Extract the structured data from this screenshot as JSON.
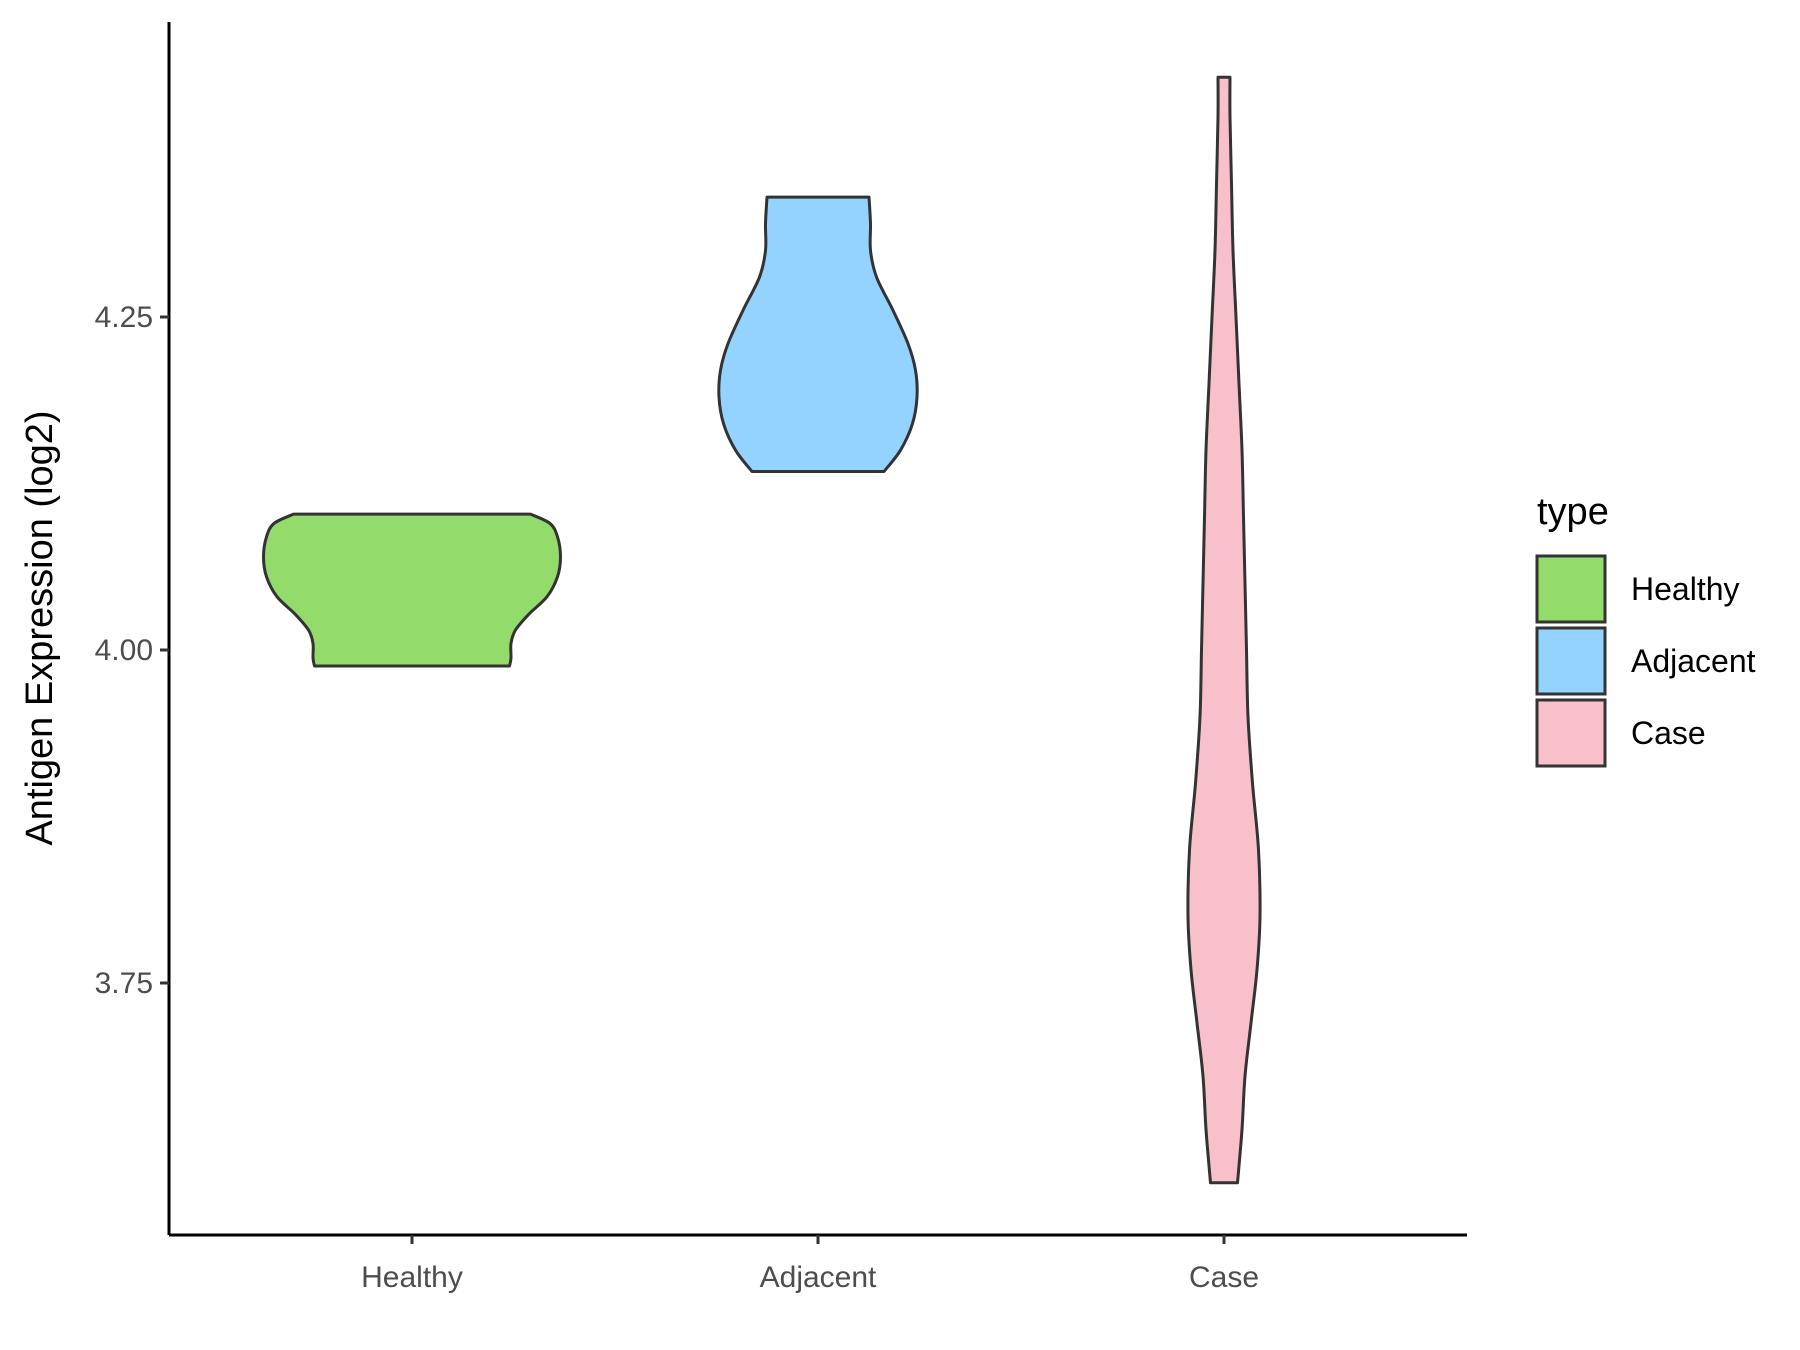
{
  "chart_data": {
    "type": "violin",
    "ylabel": "Antigen Expression (log2)",
    "xlabel": "",
    "ylim": [
      3.58,
      4.47
    ],
    "yticks": [
      3.75,
      4.0,
      4.25
    ],
    "ytick_labels": [
      "3.75",
      "4.00",
      "4.25"
    ],
    "categories": [
      "Healthy",
      "Adjacent",
      "Case"
    ],
    "legend": {
      "title": "type",
      "position": "right",
      "entries": [
        "Healthy",
        "Adjacent",
        "Case"
      ]
    },
    "grid": false,
    "series": [
      {
        "category": "Healthy",
        "color": "#93DB6B",
        "min": 3.988,
        "max": 4.102,
        "profile": [
          [
            3.988,
            0.65
          ],
          [
            3.994,
            0.66
          ],
          [
            4.005,
            0.66
          ],
          [
            4.015,
            0.69
          ],
          [
            4.027,
            0.78
          ],
          [
            4.04,
            0.9
          ],
          [
            4.055,
            0.97
          ],
          [
            4.07,
            0.99
          ],
          [
            4.085,
            0.97
          ],
          [
            4.095,
            0.92
          ],
          [
            4.102,
            0.79
          ]
        ]
      },
      {
        "category": "Adjacent",
        "color": "#94D3FF",
        "min": 4.134,
        "max": 4.34,
        "profile": [
          [
            4.134,
            0.44
          ],
          [
            4.15,
            0.55
          ],
          [
            4.17,
            0.63
          ],
          [
            4.19,
            0.66
          ],
          [
            4.21,
            0.65
          ],
          [
            4.23,
            0.6
          ],
          [
            4.255,
            0.5
          ],
          [
            4.28,
            0.39
          ],
          [
            4.3,
            0.35
          ],
          [
            4.32,
            0.35
          ],
          [
            4.34,
            0.34
          ]
        ]
      },
      {
        "category": "Case",
        "color": "#F7C0CB",
        "min": 3.6,
        "max": 4.43,
        "profile": [
          [
            3.6,
            0.09
          ],
          [
            3.64,
            0.12
          ],
          [
            3.68,
            0.14
          ],
          [
            3.72,
            0.18
          ],
          [
            3.76,
            0.22
          ],
          [
            3.8,
            0.24
          ],
          [
            3.85,
            0.23
          ],
          [
            3.9,
            0.19
          ],
          [
            3.95,
            0.16
          ],
          [
            4.0,
            0.15
          ],
          [
            4.05,
            0.14
          ],
          [
            4.1,
            0.13
          ],
          [
            4.15,
            0.12
          ],
          [
            4.2,
            0.1
          ],
          [
            4.25,
            0.08
          ],
          [
            4.3,
            0.06
          ],
          [
            4.35,
            0.05
          ],
          [
            4.4,
            0.04
          ],
          [
            4.43,
            0.04
          ]
        ]
      }
    ]
  }
}
